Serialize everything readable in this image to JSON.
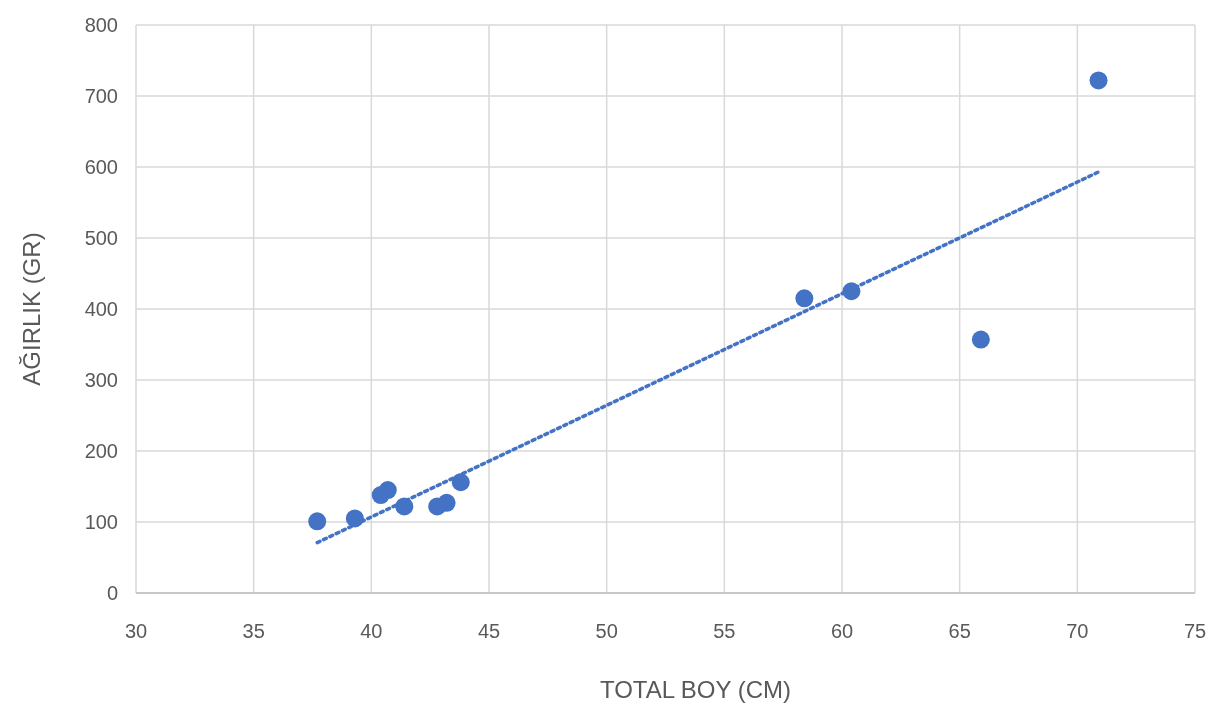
{
  "chart_data": {
    "type": "scatter",
    "xlabel": "TOTAL BOY (CM)",
    "ylabel": "AĞIRLIK (GR)",
    "xlim": [
      30,
      75
    ],
    "xticks": [
      30,
      35,
      40,
      45,
      50,
      55,
      60,
      65,
      70,
      75
    ],
    "ylim": [
      0,
      800
    ],
    "yticks": [
      0,
      100,
      200,
      300,
      400,
      500,
      600,
      700,
      800
    ],
    "grid": true,
    "marker": "circle",
    "series": [
      {
        "color": "#4472c4",
        "x": [
          37.7,
          39.3,
          40.4,
          40.7,
          41.4,
          42.8,
          43.2,
          43.8,
          58.4,
          60.4,
          65.9,
          70.9
        ],
        "values": [
          101,
          105,
          138,
          145,
          122,
          122,
          127,
          156,
          415,
          425,
          357,
          722
        ]
      },
      {
        "type": "line",
        "color": "#4472c4",
        "line_style": "dotted",
        "marker": "none",
        "x": [
          37.7,
          70.9
        ],
        "values": [
          71,
          593
        ]
      }
    ]
  }
}
